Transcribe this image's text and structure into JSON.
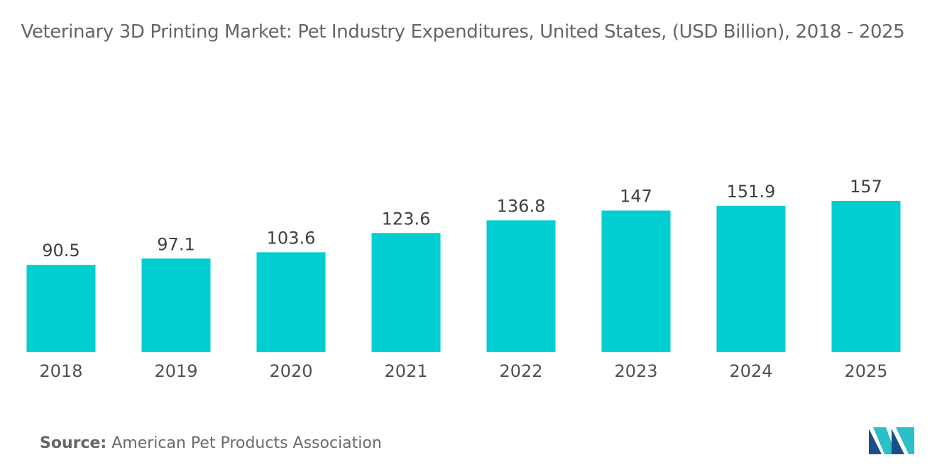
{
  "page": {
    "title": "Veterinary 3D Printing Market: Pet Industry Expenditures, United States, (USD Billion), 2018 - 2025",
    "source_label": "Source:",
    "source_text": "American Pet Products Association",
    "logo_icon": "mordor-intelligence-logo-icon"
  },
  "colors": {
    "bar": "#00CED1",
    "label": "#404040",
    "tick": "#505050",
    "logo_dark": "#1b4f8a",
    "logo_light": "#2bbfc9"
  },
  "chart_data": {
    "type": "bar",
    "title": "Veterinary 3D Printing Market: Pet Industry Expenditures, United States, (USD Billion), 2018 - 2025",
    "xlabel": "",
    "ylabel": "",
    "categories": [
      "2018",
      "2019",
      "2020",
      "2021",
      "2022",
      "2023",
      "2024",
      "2025"
    ],
    "series": [
      {
        "name": "Pet Industry Expenditures (USD Billion)",
        "values": [
          90.5,
          97.1,
          103.6,
          123.6,
          136.8,
          147,
          151.9,
          157
        ],
        "labels": [
          "90.5",
          "97.1",
          "103.6",
          "123.6",
          "136.8",
          "147",
          "151.9",
          "157"
        ]
      }
    ],
    "ylim": [
      0,
      157
    ],
    "grid": false,
    "legend": "none"
  }
}
